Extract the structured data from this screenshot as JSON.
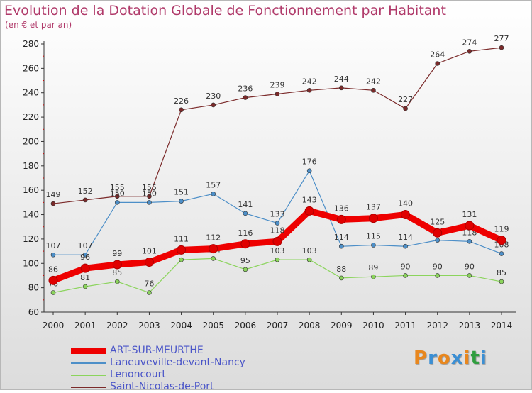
{
  "title": "Evolution de la Dotation Globale de Fonctionnement par Habitant",
  "subtitle": "(en € et par an)",
  "logo": {
    "text": "Proxiti",
    "colors": [
      "#e8871e",
      "#3b8fd4",
      "#e8871e",
      "#3b8fd4",
      "#e8871e",
      "#2f9e3f",
      "#3b8fd4"
    ]
  },
  "chart_data": {
    "type": "line",
    "title": "Evolution de la Dotation Globale de Fonctionnement par Habitant",
    "subtitle": "(en € et par an)",
    "x": [
      "2000",
      "2001",
      "2002",
      "2003",
      "2004",
      "2005",
      "2006",
      "2007",
      "2008",
      "2009",
      "2010",
      "2011",
      "2012",
      "2013",
      "2014"
    ],
    "ylim": [
      60,
      280
    ],
    "yticks": [
      60,
      80,
      100,
      120,
      140,
      160,
      180,
      200,
      220,
      240,
      260,
      280
    ],
    "grid": false,
    "legend": "bottom-left",
    "series": [
      {
        "name": "Saint-Nicolas-de-Port",
        "color": "#7b2a2a",
        "values": [
          149,
          152,
          155,
          155,
          226,
          230,
          236,
          239,
          242,
          244,
          242,
          227,
          264,
          274,
          277
        ]
      },
      {
        "name": "Laneuveville-devant-Nancy",
        "color": "#4d8fc8",
        "values": [
          107,
          107,
          150,
          150,
          151,
          157,
          141,
          133,
          176,
          114,
          115,
          114,
          119,
          118,
          108
        ]
      },
      {
        "name": "Lenoncourt",
        "color": "#8bd45c",
        "values": [
          76,
          81,
          85,
          76,
          103,
          104,
          95,
          103,
          103,
          88,
          89,
          90,
          90,
          90,
          85
        ]
      },
      {
        "name": "ART-SUR-MEURTHE",
        "color": "#ee0000",
        "values": [
          86,
          96,
          99,
          101,
          111,
          112,
          116,
          118,
          143,
          136,
          137,
          140,
          125,
          131,
          119
        ]
      }
    ],
    "legend_order": [
      "ART-SUR-MEURTHE",
      "Laneuveville-devant-Nancy",
      "Lenoncourt",
      "Saint-Nicolas-de-Port"
    ]
  }
}
